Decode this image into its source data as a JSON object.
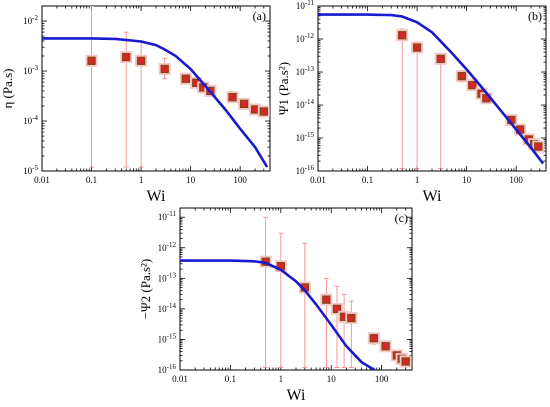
{
  "chart_data": [
    {
      "type": "scatter",
      "panel_label": "(a)",
      "xlabel": "Wi",
      "ylabel": "η (Pa.s)",
      "xscale": "log",
      "yscale": "log",
      "xlim": [
        0.01,
        400
      ],
      "ylim": [
        1e-05,
        0.02
      ],
      "xticks": [
        "0.01",
        "0.1",
        "1",
        "10",
        "100"
      ],
      "yticks": [
        {
          "base": "10",
          "exp": "-5",
          "value": 1e-05
        },
        {
          "base": "10",
          "exp": "-4",
          "value": 0.0001
        },
        {
          "base": "10",
          "exp": "-3",
          "value": 0.001
        },
        {
          "base": "10",
          "exp": "-2",
          "value": 0.01
        }
      ],
      "series": [
        {
          "kind": "markers",
          "x": [
            0.1,
            0.5,
            1,
            3,
            8,
            13,
            18,
            25,
            70,
            120,
            200,
            300
          ],
          "y": [
            0.0016,
            0.0019,
            0.0016,
            0.0011,
            0.0007,
            0.00058,
            0.00047,
            0.0004,
            0.0003,
            0.00022,
            0.00017,
            0.000155
          ],
          "y_low": [
            1.2e-05,
            1.2e-05,
            1.2e-05,
            0.0007,
            0.00056,
            0.00046,
            0.00038,
            0.00033,
            0.00025,
            0.00018,
            0.00014,
            0.00013
          ],
          "y_high": [
            0.02,
            0.006,
            0.004,
            0.0018,
            0.0009,
            0.00072,
            0.00058,
            0.0005,
            0.00038,
            0.00028,
            0.00021,
            0.00019
          ]
        },
        {
          "kind": "line",
          "x": [
            0.01,
            0.1,
            0.3,
            1,
            2,
            3,
            5,
            10,
            20,
            50,
            100,
            200,
            350
          ],
          "y": [
            0.0045,
            0.0045,
            0.0044,
            0.0039,
            0.0033,
            0.0027,
            0.002,
            0.0011,
            0.0005,
            0.00017,
            7e-05,
            3e-05,
            1.2e-05
          ]
        }
      ]
    },
    {
      "type": "scatter",
      "panel_label": "(b)",
      "xlabel": "Wi",
      "ylabel": "Ψ1 (Pa.s²)",
      "xscale": "log",
      "yscale": "log",
      "xlim": [
        0.01,
        400
      ],
      "ylim": [
        1e-16,
        1e-11
      ],
      "xticks": [
        "0.01",
        "0.1",
        "1",
        "10",
        "100"
      ],
      "yticks": [
        {
          "base": "10",
          "exp": "-16",
          "value": 1e-16
        },
        {
          "base": "10",
          "exp": "-15",
          "value": 1e-15
        },
        {
          "base": "10",
          "exp": "-14",
          "value": 1e-14
        },
        {
          "base": "10",
          "exp": "-13",
          "value": 1e-13
        },
        {
          "base": "10",
          "exp": "-12",
          "value": 1e-12
        },
        {
          "base": "10",
          "exp": "-11",
          "value": 1e-11
        }
      ],
      "series": [
        {
          "kind": "markers",
          "x": [
            0.5,
            1,
            3,
            8,
            13,
            20,
            25,
            80,
            120,
            180,
            230,
            280
          ],
          "y": [
            1.3e-12,
            5.5e-13,
            2.5e-13,
            7.5e-14,
            4e-14,
            2.2e-14,
            1.6e-14,
            3.5e-15,
            1.8e-15,
            9e-16,
            6.5e-16,
            5.5e-16
          ],
          "y_low": [
            1.2e-16,
            1.2e-16,
            1.2e-16,
            5e-14,
            2.8e-14,
            1.6e-14,
            1.2e-14,
            2.5e-15,
            1.3e-15,
            6.5e-16,
            4.8e-16,
            4e-16
          ],
          "y_high": [
            2e-12,
            8e-13,
            3.5e-13,
            1.1e-13,
            5.6e-14,
            3e-14,
            2.2e-14,
            5e-15,
            2.5e-15,
            1.2e-15,
            9e-16,
            7.5e-16
          ]
        },
        {
          "kind": "line",
          "x": [
            0.01,
            0.1,
            0.3,
            0.5,
            1,
            2,
            3,
            5,
            10,
            20,
            50,
            100,
            200,
            350
          ],
          "y": [
            5.5e-12,
            5.5e-12,
            5.3e-12,
            4.8e-12,
            3.2e-12,
            1.6e-12,
            8.5e-13,
            3.8e-13,
            1.2e-13,
            3.5e-14,
            6.5e-15,
            1.8e-15,
            5e-16,
            1.7e-16
          ]
        }
      ]
    },
    {
      "type": "scatter",
      "panel_label": "(c)",
      "xlabel": "Wi",
      "ylabel": "−Ψ2 (Pa.s²)",
      "xscale": "log",
      "yscale": "log",
      "xlim": [
        0.01,
        400
      ],
      "ylim": [
        1e-16,
        2e-11
      ],
      "xticks": [
        "0.01",
        "0.1",
        "1",
        "10",
        "100"
      ],
      "yticks": [
        {
          "base": "10",
          "exp": "-16",
          "value": 1e-16
        },
        {
          "base": "10",
          "exp": "-15",
          "value": 1e-15
        },
        {
          "base": "10",
          "exp": "-14",
          "value": 1e-14
        },
        {
          "base": "10",
          "exp": "-13",
          "value": 1e-13
        },
        {
          "base": "10",
          "exp": "-12",
          "value": 1e-12
        },
        {
          "base": "10",
          "exp": "-11",
          "value": 1e-11
        }
      ],
      "series": [
        {
          "kind": "markers",
          "x": [
            0.5,
            1,
            3,
            8,
            13,
            18,
            25,
            70,
            120,
            200,
            250,
            300
          ],
          "y": [
            3.5e-13,
            2.5e-13,
            5e-14,
            2e-14,
            1e-14,
            5.5e-15,
            5e-15,
            1.1e-15,
            6e-16,
            3e-16,
            2.3e-16,
            1.9e-16
          ],
          "y_low": [
            1.2e-16,
            1.2e-16,
            1.2e-16,
            1.2e-16,
            1.2e-16,
            1.2e-16,
            1.2e-16,
            7e-16,
            4e-16,
            2e-16,
            1.6e-16,
            1.3e-16
          ],
          "y_high": [
            1e-11,
            3e-12,
            1.4e-12,
            1e-13,
            5.5e-14,
            3e-14,
            1.8e-14,
            1.6e-15,
            8.5e-16,
            4.2e-16,
            3.2e-16,
            2.7e-16
          ]
        },
        {
          "kind": "line",
          "x": [
            0.01,
            0.1,
            0.3,
            0.5,
            1,
            2,
            3,
            5,
            10,
            20,
            40,
            80
          ],
          "y": [
            3.8e-13,
            3.8e-13,
            3.6e-13,
            3.2e-13,
            1.9e-13,
            8e-14,
            4e-14,
            1.4e-14,
            3e-15,
            6e-16,
            1.8e-16,
            9e-17
          ]
        }
      ]
    }
  ],
  "colors": {
    "fit_line": "#1a1acd",
    "marker_face": "#d62728",
    "marker_edge": "#8b4513",
    "marker_halo": "#f4c6c6",
    "error_bar": "#f08080"
  }
}
